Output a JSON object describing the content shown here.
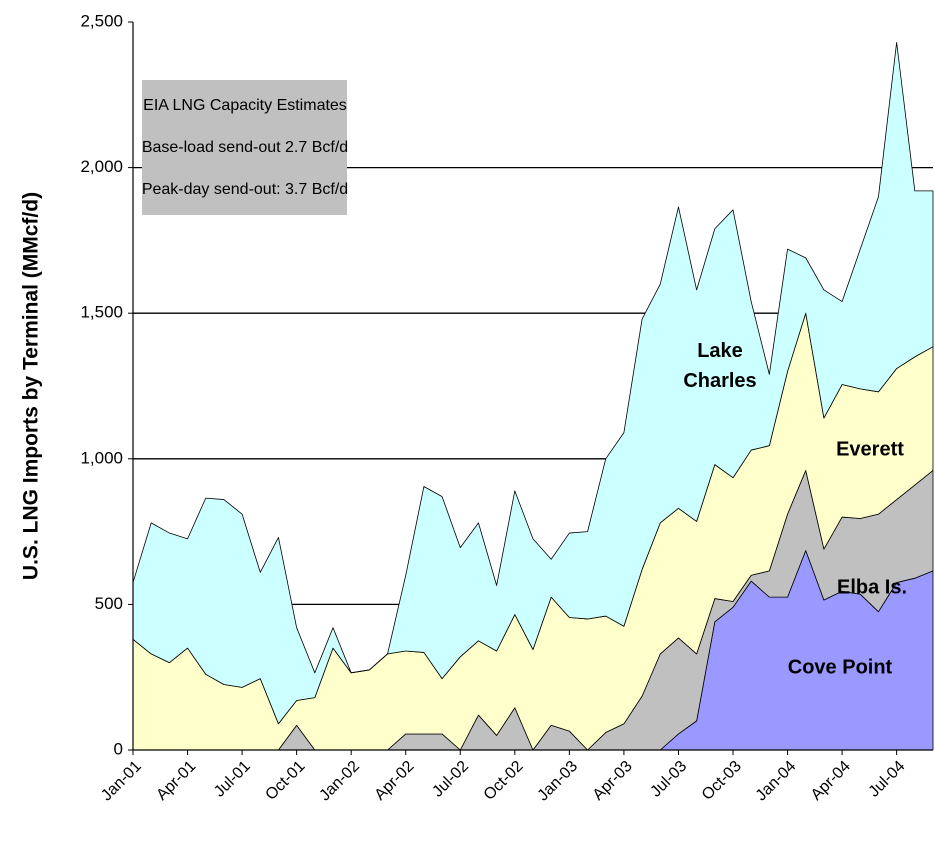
{
  "chart_data": {
    "type": "stacked_area",
    "y_label": "U.S. LNG Imports by Terminal (MMcf/d)",
    "annotation_lines": [
      "EIA LNG Capacity Estimates",
      "Base-load send-out 2.7 Bcf/d",
      "Peak-day send-out:  3.7 Bcf/d"
    ],
    "categories": [
      "Jan-01",
      null,
      null,
      "Apr-01",
      null,
      null,
      "Jul-01",
      null,
      null,
      "Oct-01",
      null,
      null,
      "Jan-02",
      null,
      null,
      "Apr-02",
      null,
      null,
      "Jul-02",
      null,
      null,
      "Oct-02",
      null,
      null,
      "Jan-03",
      null,
      null,
      "Apr-03",
      null,
      null,
      "Jul-03",
      null,
      null,
      "Oct-03",
      null,
      null,
      "Jan-04",
      null,
      null,
      "Apr-04",
      null,
      null,
      "Jul-04",
      null,
      null
    ],
    "series": [
      {
        "name": "Cove Point",
        "color": "#9999ff",
        "values": [
          0,
          0,
          0,
          0,
          0,
          0,
          0,
          0,
          0,
          0,
          0,
          0,
          0,
          0,
          0,
          0,
          0,
          0,
          0,
          0,
          0,
          0,
          0,
          0,
          0,
          0,
          0,
          0,
          0,
          0,
          55,
          100,
          440,
          490,
          580,
          525,
          525,
          685,
          515,
          545,
          535,
          475,
          575,
          590,
          615
        ]
      },
      {
        "name": "Elba Is.",
        "color": "#c0c0c0",
        "values": [
          0,
          0,
          0,
          0,
          0,
          0,
          0,
          0,
          0,
          85,
          0,
          0,
          0,
          0,
          0,
          55,
          55,
          55,
          0,
          120,
          50,
          145,
          0,
          85,
          65,
          0,
          60,
          90,
          185,
          330,
          330,
          230,
          80,
          20,
          20,
          90,
          285,
          275,
          175,
          255,
          260,
          335,
          285,
          320,
          345
        ]
      },
      {
        "name": "Everett",
        "color": "#ffffcc",
        "values": [
          380,
          330,
          300,
          350,
          260,
          225,
          215,
          245,
          90,
          85,
          180,
          350,
          265,
          275,
          330,
          285,
          280,
          190,
          320,
          255,
          290,
          320,
          345,
          440,
          390,
          450,
          400,
          335,
          435,
          450,
          445,
          455,
          460,
          425,
          430,
          430,
          490,
          540,
          450,
          455,
          445,
          420,
          450,
          440,
          425
        ]
      },
      {
        "name": "Lake Charles",
        "color": "#ccffff",
        "values": [
          195,
          450,
          445,
          375,
          605,
          635,
          595,
          365,
          640,
          250,
          85,
          70,
          0,
          0,
          0,
          260,
          570,
          625,
          375,
          405,
          225,
          425,
          380,
          130,
          290,
          300,
          540,
          665,
          860,
          820,
          1035,
          795,
          810,
          920,
          510,
          245,
          420,
          190,
          440,
          285,
          480,
          670,
          1120,
          570,
          535
        ]
      }
    ],
    "ylim": [
      0,
      2500
    ],
    "yticks": [
      0,
      500,
      {
        "value": 1000,
        "label": "1,000"
      },
      {
        "value": 1500,
        "label": "1,500"
      },
      {
        "value": 2000,
        "label": "2,000"
      },
      {
        "value": 2500,
        "label": "2,500"
      }
    ],
    "grid": true
  }
}
